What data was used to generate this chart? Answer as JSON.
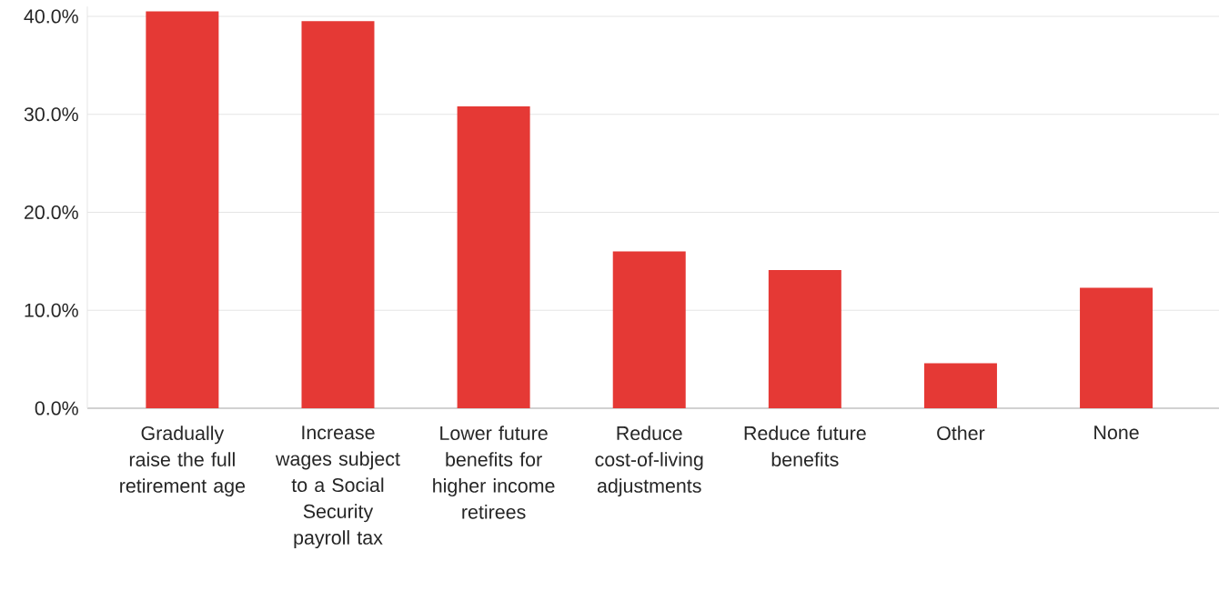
{
  "chart_data": {
    "type": "bar",
    "categories": [
      "Gradually raise the full retirement age",
      "Increase wages subject to a Social Security payroll tax",
      "Lower future benefits for higher income retirees",
      "Reduce cost-of-living adjustments",
      "Reduce future benefits",
      "Other",
      "None"
    ],
    "values": [
      40.5,
      39.5,
      30.8,
      16.0,
      14.1,
      4.6,
      12.3
    ],
    "color": "#e53935",
    "ylim": [
      0,
      41
    ],
    "yticks": [
      {
        "value": 0,
        "label": "0.0%"
      },
      {
        "value": 10,
        "label": "10.0%"
      },
      {
        "value": 20,
        "label": "20.0%"
      },
      {
        "value": 30,
        "label": "30.0%"
      },
      {
        "value": 40,
        "label": "40.0%"
      }
    ],
    "grid": "y"
  }
}
